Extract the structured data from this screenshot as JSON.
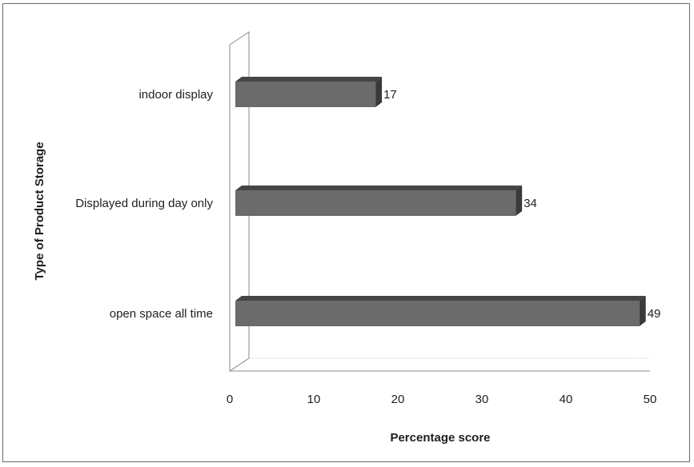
{
  "chart_data": {
    "type": "bar",
    "orientation": "horizontal",
    "three_d": true,
    "categories": [
      "open space all time",
      "Displayed during day only",
      "indoor display"
    ],
    "values": [
      49,
      34,
      17
    ],
    "data_labels": [
      "49",
      "34",
      "17"
    ],
    "title": "",
    "xlabel": "Percentage score",
    "ylabel": "Type of Product Storage",
    "xlim": [
      0,
      50
    ],
    "xticks": [
      "0",
      "10",
      "20",
      "30",
      "40",
      "50"
    ],
    "grid": false,
    "legend": "none",
    "colors": {
      "bar_front": "#6b6b6b",
      "bar_top": "#454545",
      "bar_side": "#3a3a3a",
      "axis": "#8a8a8a",
      "text": "#1e1e1e"
    }
  }
}
